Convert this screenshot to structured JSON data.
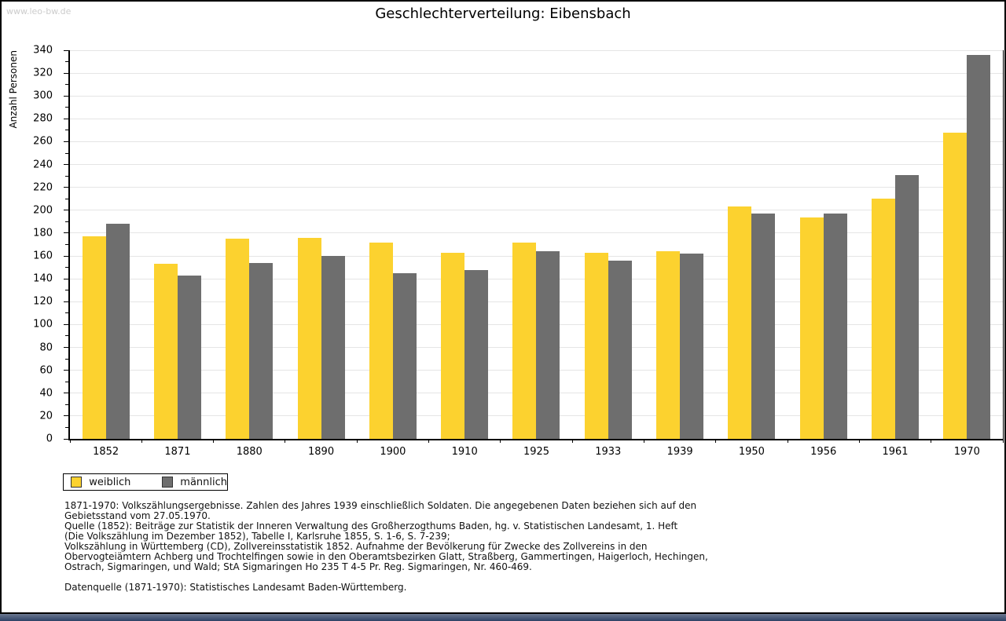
{
  "watermark": "www.leo-bw.de",
  "title": "Geschlechterverteilung: Eibensbach",
  "chart_data": {
    "type": "bar",
    "title": "Geschlechterverteilung: Eibensbach",
    "xlabel": "",
    "ylabel": "Anzahl Personen",
    "ylim": [
      0,
      340
    ],
    "ytick_step": 20,
    "ytick_minor_step": 10,
    "grid": true,
    "legend_position": "bottom-left",
    "categories": [
      "1852",
      "1871",
      "1880",
      "1890",
      "1900",
      "1910",
      "1925",
      "1933",
      "1939",
      "1950",
      "1956",
      "1961",
      "1970"
    ],
    "series": [
      {
        "name": "weiblich",
        "color": "#fcd22f",
        "values": [
          177,
          153,
          175,
          176,
          172,
          163,
          172,
          163,
          164,
          203,
          194,
          210,
          268
        ]
      },
      {
        "name": "männlich",
        "color": "#6e6e6e",
        "values": [
          188,
          143,
          154,
          160,
          145,
          148,
          164,
          156,
          162,
          197,
          197,
          231,
          336
        ]
      }
    ]
  },
  "footnotes": [
    "1871-1970: Volkszählungsergebnisse. Zahlen des Jahres 1939 einschließlich Soldaten. Die angegebenen Daten beziehen sich auf den",
    "Gebietsstand vom 27.05.1970.",
    "Quelle (1852): Beiträge zur Statistik der Inneren Verwaltung des Großherzogthums Baden, hg. v. Statistischen Landesamt, 1. Heft",
    "(Die Volkszählung im Dezember 1852), Tabelle I, Karlsruhe 1855, S. 1-6, S. 7-239;",
    "Volkszählung in Württemberg (CD), Zollvereinsstatistik 1852. Aufnahme der Bevölkerung für Zwecke des Zollvereins in den",
    "Obervogteiämtern Achberg und Trochtelfingen sowie in den Oberamtsbezirken Glatt, Straßberg, Gammertingen, Haigerloch, Hechingen,",
    "Ostrach, Sigmaringen, und Wald; StA Sigmaringen Ho 235 T 4-5 Pr. Reg. Sigmaringen, Nr. 460-469.",
    "",
    "Datenquelle (1871-1970): Statistisches Landesamt Baden-Württemberg."
  ],
  "colors": {
    "weiblich": "#fcd22f",
    "männlich": "#6e6e6e",
    "gridline": "#e5e5e5",
    "watermark": "#cccccc",
    "axis": "#000000",
    "bottom_strip": "#2e4266"
  }
}
